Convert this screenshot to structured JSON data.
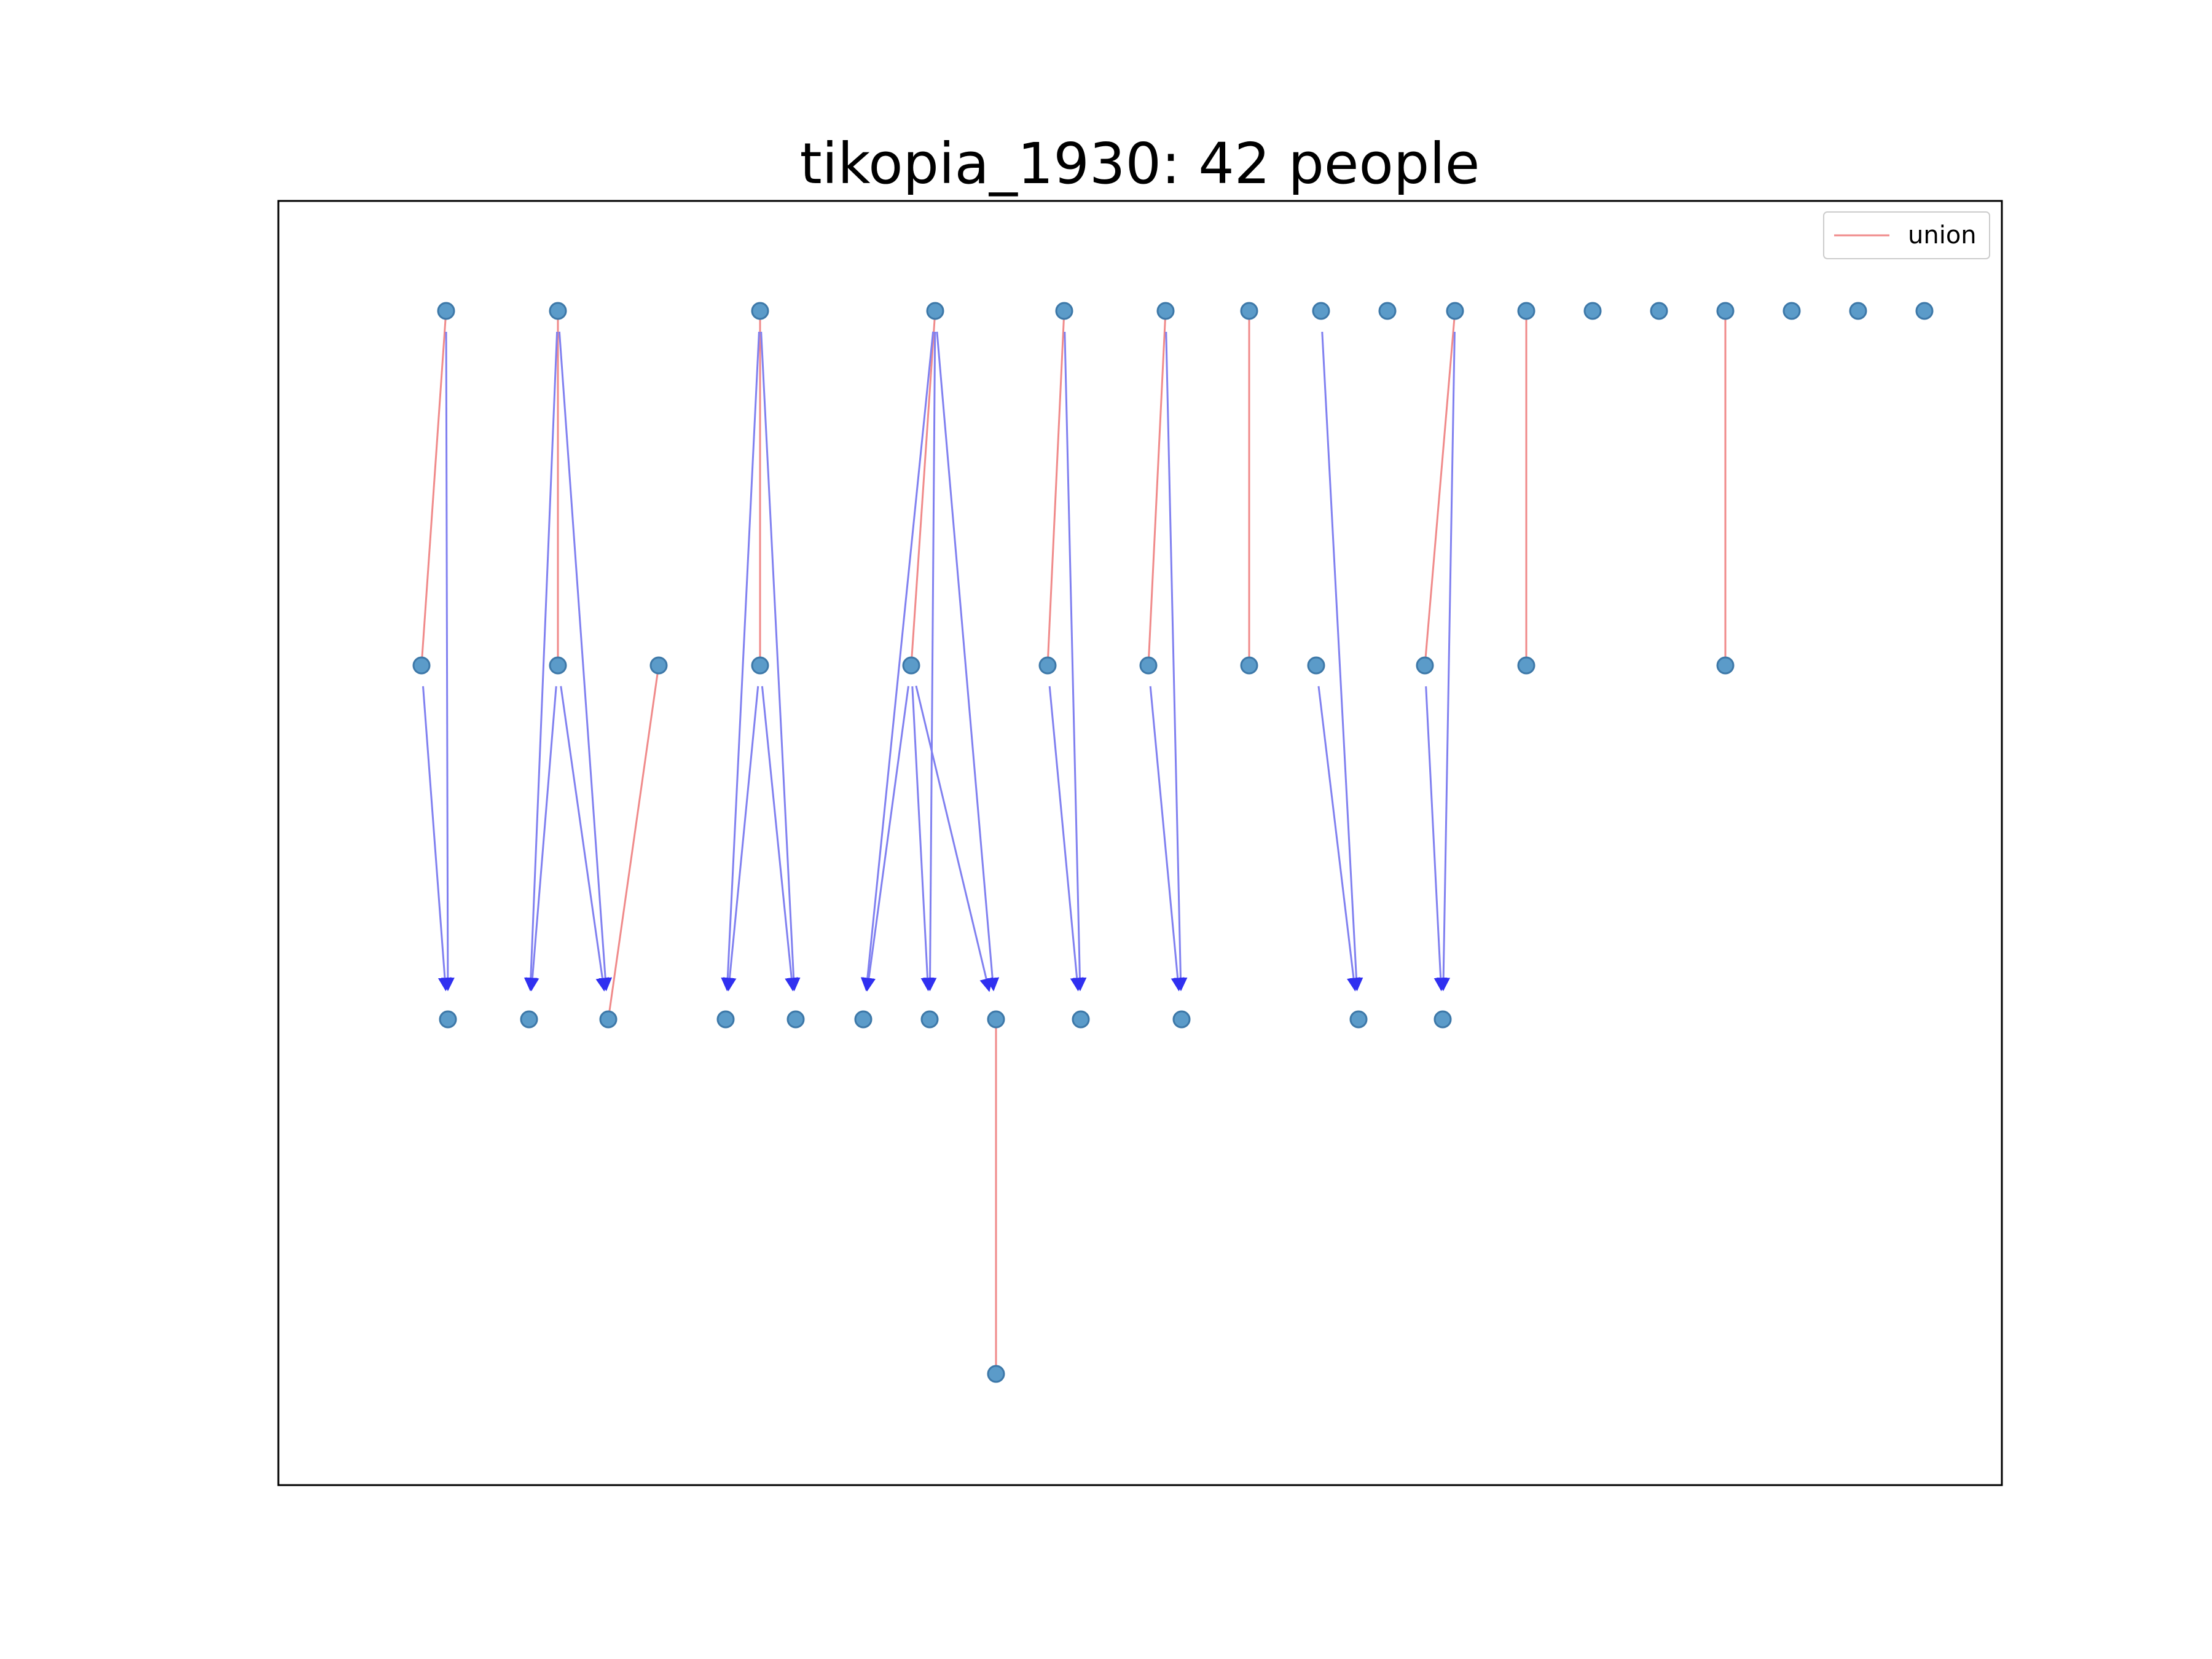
{
  "title": "tikopia_1930: 42 people",
  "legend": {
    "label": "union",
    "placement": "upper-right"
  },
  "colors": {
    "node_fill": "#5b9bc9",
    "node_stroke": "#3d78a8",
    "union_edge": "#f08a8a",
    "descent_edge": "#8080f0",
    "arrowhead": "#3030f0"
  },
  "chart_data": {
    "type": "diagram",
    "node_count": 42,
    "generations": [
      {
        "level": 0,
        "nodes": [
          "g0-1",
          "g0-2",
          "g0-3",
          "g0-4",
          "g0-5",
          "g0-6",
          "g0-7",
          "g0-8",
          "g0-9",
          "g0-10",
          "g0-11",
          "g0-12",
          "g0-13",
          "g0-14",
          "g0-15",
          "g0-16",
          "g0-17"
        ]
      },
      {
        "level": 1,
        "nodes": [
          "g1-1",
          "g1-2",
          "g1-3",
          "g1-4",
          "g1-5",
          "g1-6",
          "g1-7",
          "g1-8",
          "g1-9",
          "g1-10",
          "g1-11",
          "g1-12"
        ]
      },
      {
        "level": 2,
        "nodes": [
          "g2-1",
          "g2-2",
          "g2-3",
          "g2-4",
          "g2-5",
          "g2-6",
          "g2-7",
          "g2-8",
          "g2-9",
          "g2-10",
          "g2-11",
          "g2-12"
        ]
      },
      {
        "level": 3,
        "nodes": [
          "g3-1"
        ]
      }
    ],
    "unions": [
      [
        "g0-1",
        "g1-1"
      ],
      [
        "g0-2",
        "g1-2"
      ],
      [
        "g0-3",
        "g1-4"
      ],
      [
        "g0-4",
        "g1-5"
      ],
      [
        "g0-5",
        "g1-6"
      ],
      [
        "g0-6",
        "g1-7"
      ],
      [
        "g0-7",
        "g1-8"
      ],
      [
        "g0-10",
        "g1-10"
      ],
      [
        "g0-11",
        "g1-11"
      ],
      [
        "g0-14",
        "g1-12"
      ],
      [
        "g1-3",
        "g2-3"
      ],
      [
        "g2-8",
        "g3-1"
      ]
    ],
    "descents": [
      [
        "g0-1",
        "g2-1"
      ],
      [
        "g1-1",
        "g2-1"
      ],
      [
        "g0-2",
        "g2-2"
      ],
      [
        "g0-2",
        "g2-3"
      ],
      [
        "g1-2",
        "g2-2"
      ],
      [
        "g1-2",
        "g2-3"
      ],
      [
        "g0-3",
        "g2-4"
      ],
      [
        "g0-3",
        "g2-5"
      ],
      [
        "g1-4",
        "g2-4"
      ],
      [
        "g1-4",
        "g2-5"
      ],
      [
        "g0-4",
        "g2-6"
      ],
      [
        "g0-4",
        "g2-7"
      ],
      [
        "g0-4",
        "g2-8"
      ],
      [
        "g1-5",
        "g2-6"
      ],
      [
        "g1-5",
        "g2-7"
      ],
      [
        "g1-5",
        "g2-8"
      ],
      [
        "g0-5",
        "g2-9"
      ],
      [
        "g1-6",
        "g2-9"
      ],
      [
        "g0-6",
        "g2-10"
      ],
      [
        "g1-7",
        "g2-10"
      ],
      [
        "g0-8",
        "g2-11"
      ],
      [
        "g1-9",
        "g2-11"
      ],
      [
        "g0-10",
        "g2-12"
      ],
      [
        "g1-10",
        "g2-12"
      ]
    ]
  }
}
